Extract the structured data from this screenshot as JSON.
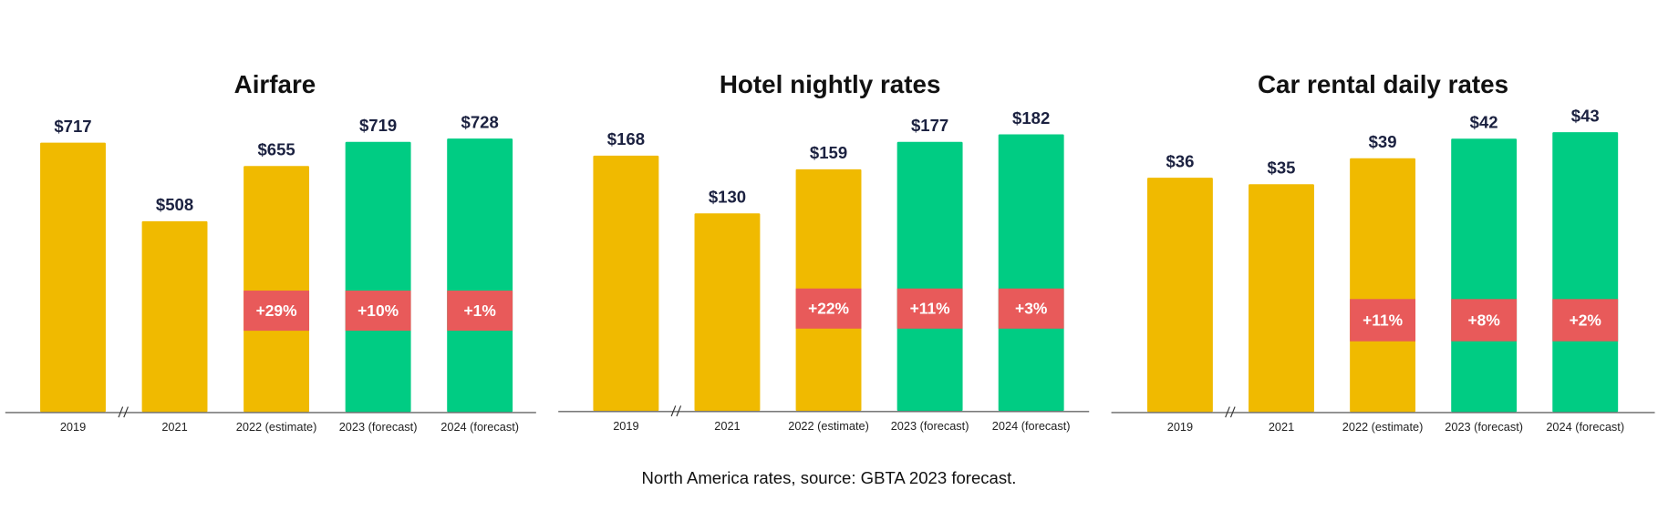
{
  "colors": {
    "actual": "#F0BA00",
    "forecast": "#00CC83",
    "change_badge": "#E85A5A",
    "label": "#1b2140"
  },
  "footer": "North America rates, source: GBTA 2023 forecast.",
  "chart_data": [
    {
      "type": "bar",
      "title": "Airfare",
      "categories": [
        "2019",
        "2021",
        "2022 (estimate)",
        "2023 (forecast)",
        "2024 (forecast)"
      ],
      "values": [
        717,
        508,
        655,
        719,
        728
      ],
      "value_labels": [
        "$717",
        "$508",
        "$655",
        "$719",
        "$728"
      ],
      "bar_colors": [
        "actual",
        "actual",
        "actual",
        "forecast",
        "forecast"
      ],
      "change_labels": [
        "",
        "",
        "+29%",
        "+10%",
        "+1%"
      ],
      "axis_break_after": "2019",
      "yaxis_visible": false
    },
    {
      "type": "bar",
      "title": "Hotel nightly rates",
      "categories": [
        "2019",
        "2021",
        "2022 (estimate)",
        "2023 (forecast)",
        "2024 (forecast)"
      ],
      "values": [
        168,
        130,
        159,
        177,
        182
      ],
      "value_labels": [
        "$168",
        "$130",
        "$159",
        "$177",
        "$182"
      ],
      "bar_colors": [
        "actual",
        "actual",
        "actual",
        "forecast",
        "forecast"
      ],
      "change_labels": [
        "",
        "",
        "+22%",
        "+11%",
        "+3%"
      ],
      "axis_break_after": "2019",
      "yaxis_visible": false
    },
    {
      "type": "bar",
      "title": "Car rental daily rates",
      "categories": [
        "2019",
        "2021",
        "2022 (estimate)",
        "2023 (forecast)",
        "2024 (forecast)"
      ],
      "values": [
        36,
        35,
        39,
        42,
        43
      ],
      "value_labels": [
        "$36",
        "$35",
        "$39",
        "$42",
        "$43"
      ],
      "bar_colors": [
        "actual",
        "actual",
        "actual",
        "forecast",
        "forecast"
      ],
      "change_labels": [
        "",
        "",
        "+11%",
        "+8%",
        "+2%"
      ],
      "axis_break_after": "2019",
      "yaxis_visible": false
    }
  ]
}
